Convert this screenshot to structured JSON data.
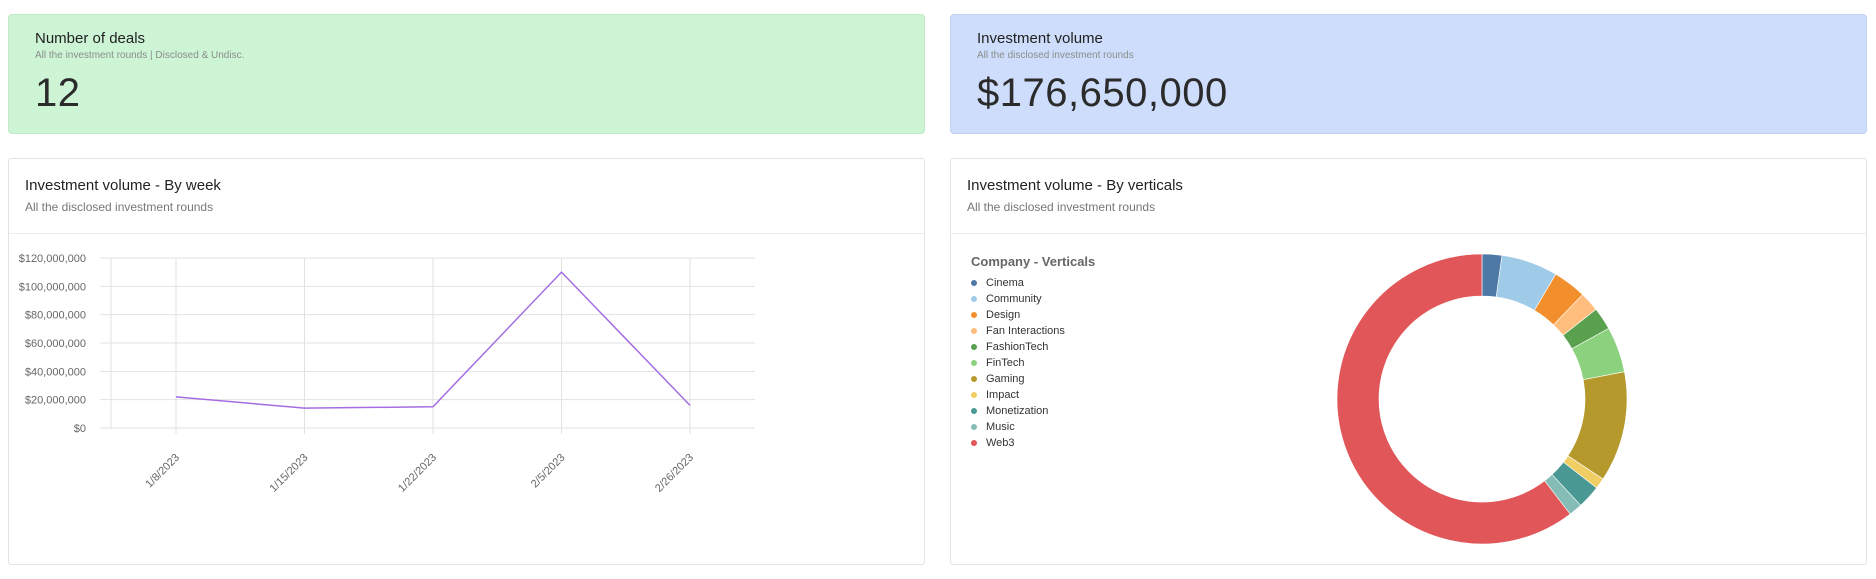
{
  "kpis": {
    "deals": {
      "title": "Number of deals",
      "subtitle": "All the investment rounds | Disclosed & Undisc.",
      "value": "12"
    },
    "volume": {
      "title": "Investment volume",
      "subtitle": "All the disclosed investment rounds",
      "value": "$176,650,000"
    }
  },
  "line_card": {
    "title": "Investment volume - By week",
    "subtitle": "All the disclosed investment rounds"
  },
  "donut_card": {
    "title": "Investment volume - By verticals",
    "subtitle": "All the disclosed investment rounds"
  },
  "colors": {
    "line": "#a56de2",
    "grid": "#e2e2e2",
    "deals_bg": "#cdf4d5",
    "volume_bg": "#cdddfb"
  },
  "chart_data": [
    {
      "type": "line",
      "title": "Investment volume - By week",
      "x": [
        "1/8/2023",
        "1/15/2023",
        "1/22/2023",
        "2/5/2023",
        "2/26/2023"
      ],
      "series": [
        {
          "values": [
            22000000,
            14000000,
            15000000,
            110000000,
            16000000
          ]
        }
      ],
      "yticks": [
        "$0",
        "$20,000,000",
        "$40,000,000",
        "$60,000,000",
        "$80,000,000",
        "$100,000,000",
        "$120,000,000"
      ],
      "ylim": [
        0,
        120000000
      ],
      "grid": true
    },
    {
      "type": "pie",
      "title": "Investment volume - By verticals",
      "legend_title": "Company - Verticals",
      "legend_position": "left",
      "categories": [
        "Cinema",
        "Community",
        "Design",
        "Fan Interactions",
        "FashionTech",
        "FinTech",
        "Gaming",
        "Impact",
        "Monetization",
        "Music",
        "Web3"
      ],
      "values": [
        2.2,
        6.3,
        3.7,
        2.2,
        2.5,
        5.1,
        12.3,
        1.2,
        2.6,
        1.5,
        60.4
      ],
      "colors": [
        "#4e79a7",
        "#a0cbe8",
        "#f28e2b",
        "#ffbe7d",
        "#59a14f",
        "#8cd17d",
        "#b6992d",
        "#f1ce63",
        "#499894",
        "#86bcb6",
        "#e15759"
      ],
      "donut": true
    }
  ]
}
